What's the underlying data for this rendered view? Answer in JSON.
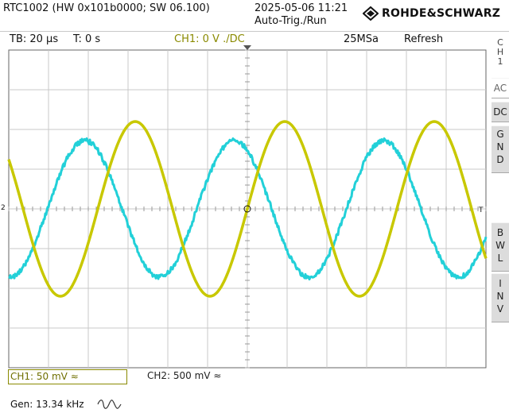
{
  "header": {
    "device_info": "RTC1002 (HW 0x101b0000; SW 06.100)",
    "datetime": "2025-05-06 11:21",
    "trigger_mode": "Auto-Trig./Run",
    "brand": "ROHDE&SCHWARZ"
  },
  "status_bar": {
    "timebase": "TB: 20 µs",
    "trigger_time": "T: 0 s",
    "ch1_trigger": "CH1: 0 V ./DC",
    "sample_rate": "25MSa",
    "acquisition": "Refresh"
  },
  "side_menu": {
    "channel": [
      "C",
      "H",
      "1"
    ],
    "ac": "AC",
    "dc": "DC",
    "gnd": [
      "G",
      "N",
      "D"
    ],
    "bwl": [
      "B",
      "W",
      "L"
    ],
    "inv": [
      "I",
      "N",
      "V"
    ]
  },
  "bottom": {
    "ch1_scale": "CH1: 50 mV ≈",
    "ch2_scale": "CH2: 500 mV ≈",
    "generator": "Gen:  13.34 kHz"
  },
  "markers": {
    "ground_marker": "2",
    "trigger_level_marker": "T"
  },
  "waveforms": {
    "ch1_color": "#c8c800",
    "ch2_color": "#22d0d8",
    "frequency_khz": 13.34
  },
  "colors": {
    "grid": "#c8c8c8",
    "ch1_label": "#8a8a00"
  }
}
